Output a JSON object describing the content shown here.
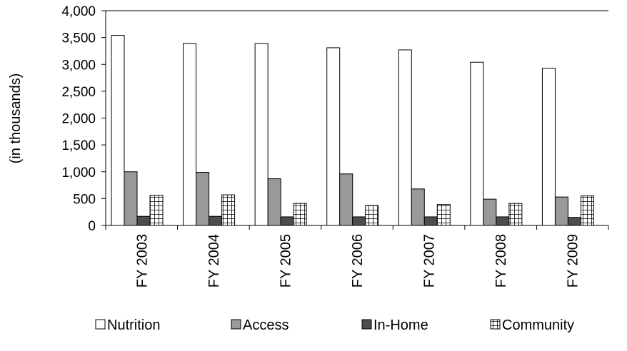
{
  "chart_data": {
    "type": "bar",
    "title": "",
    "xlabel": "",
    "ylabel": "(in thousands)",
    "ylim": [
      0,
      4000
    ],
    "yticks": [
      "0",
      "500",
      "1,000",
      "1,500",
      "2,000",
      "2,500",
      "3,000",
      "3,500",
      "4,000"
    ],
    "ytick_values": [
      0,
      500,
      1000,
      1500,
      2000,
      2500,
      3000,
      3500,
      4000
    ],
    "categories": [
      "FY 2003",
      "FY 2004",
      "FY 2005",
      "FY 2006",
      "FY 2007",
      "FY 2008",
      "FY 2009"
    ],
    "series": [
      {
        "name": "Nutrition",
        "pattern": "white",
        "values": [
          3540,
          3390,
          3390,
          3310,
          3270,
          3040,
          2930
        ]
      },
      {
        "name": "Access",
        "pattern": "gray",
        "values": [
          1000,
          990,
          870,
          960,
          680,
          490,
          530
        ]
      },
      {
        "name": "In-Home",
        "pattern": "dark",
        "values": [
          170,
          170,
          160,
          160,
          160,
          160,
          150
        ]
      },
      {
        "name": "Community",
        "pattern": "grid",
        "values": [
          560,
          570,
          410,
          370,
          390,
          410,
          550
        ]
      }
    ],
    "grid": "horizontal-top-line",
    "legend": "bottom",
    "colors": {
      "white": "#ffffff",
      "gray": "#999999",
      "dark": "#4d4d4d",
      "border": "#000000"
    }
  }
}
